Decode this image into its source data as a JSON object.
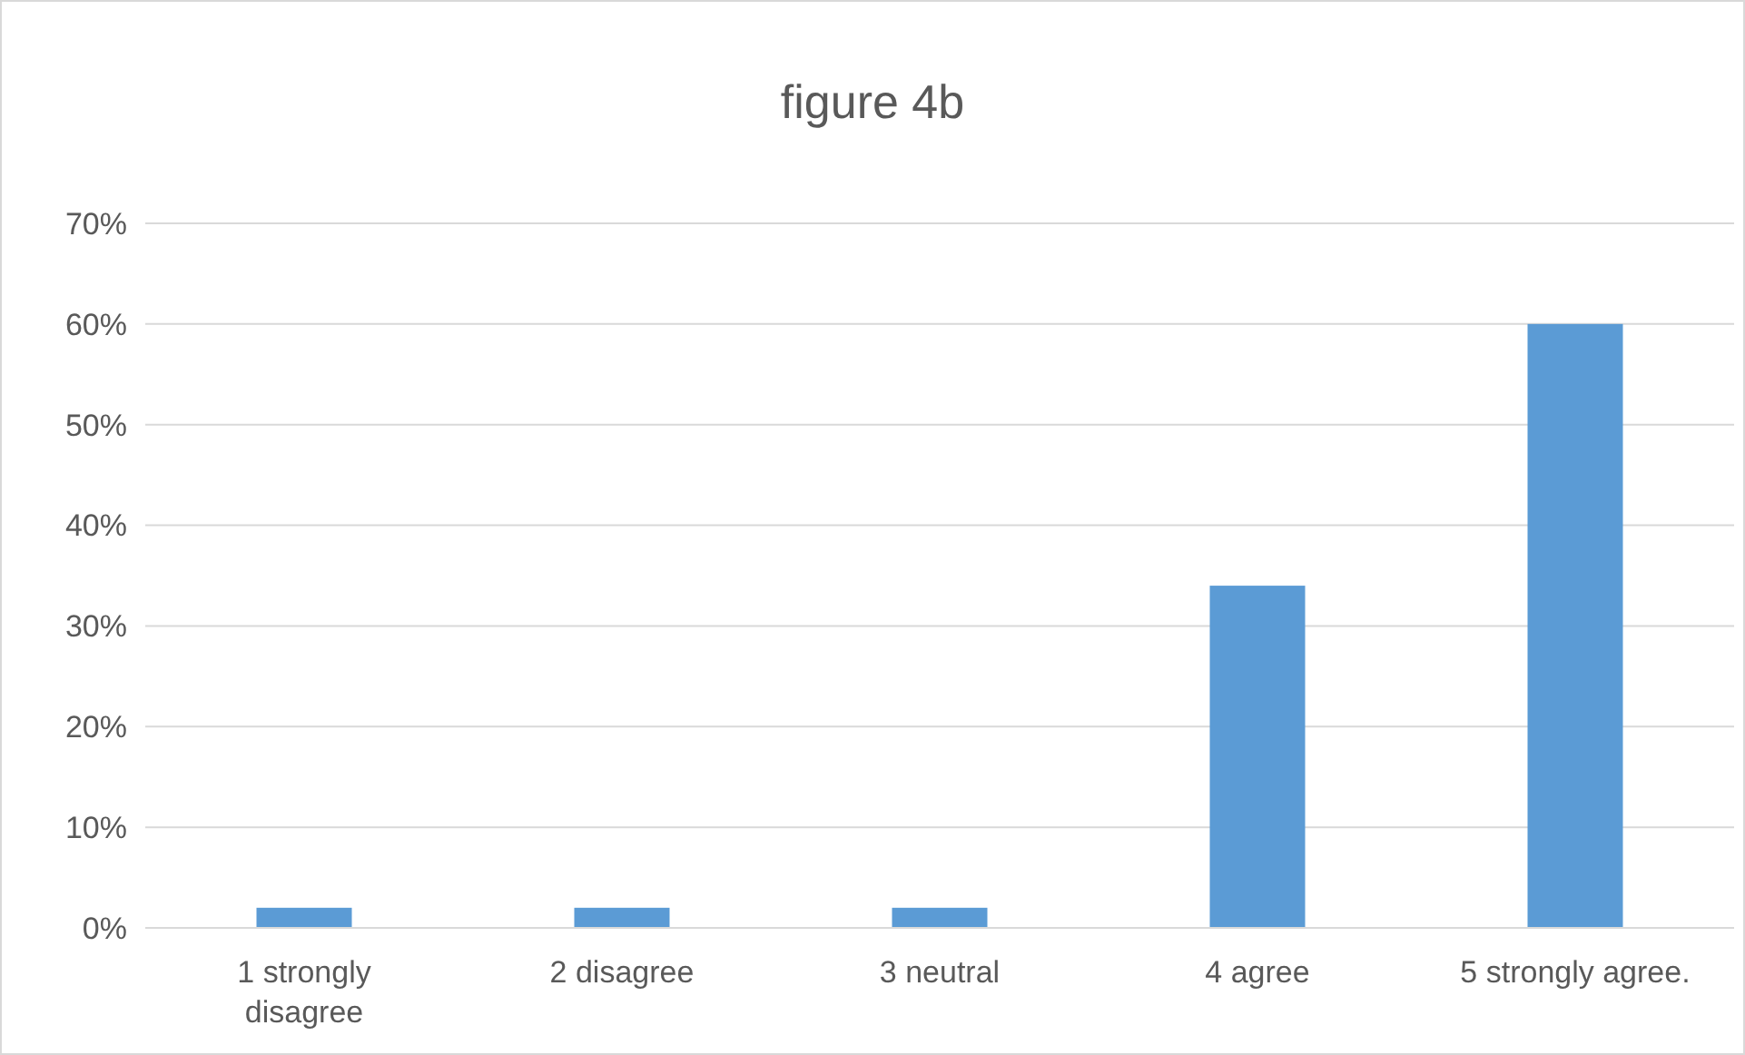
{
  "chart_data": {
    "type": "bar",
    "title": "figure 4b",
    "categories": [
      "1 strongly disagree",
      "2 disagree",
      "3 neutral",
      "4 agree",
      "5 strongly agree."
    ],
    "values": [
      2,
      2,
      2,
      34,
      60
    ],
    "color": "#5b9bd5",
    "ylim": [
      0,
      70
    ],
    "yticks": [
      {
        "value": 0,
        "label": "0%"
      },
      {
        "value": 10,
        "label": "10%"
      },
      {
        "value": 20,
        "label": "20%"
      },
      {
        "value": 30,
        "label": "30%"
      },
      {
        "value": 40,
        "label": "40%"
      },
      {
        "value": 50,
        "label": "50%"
      },
      {
        "value": 60,
        "label": "60%"
      },
      {
        "value": 70,
        "label": "70%"
      }
    ],
    "grid": "y"
  }
}
